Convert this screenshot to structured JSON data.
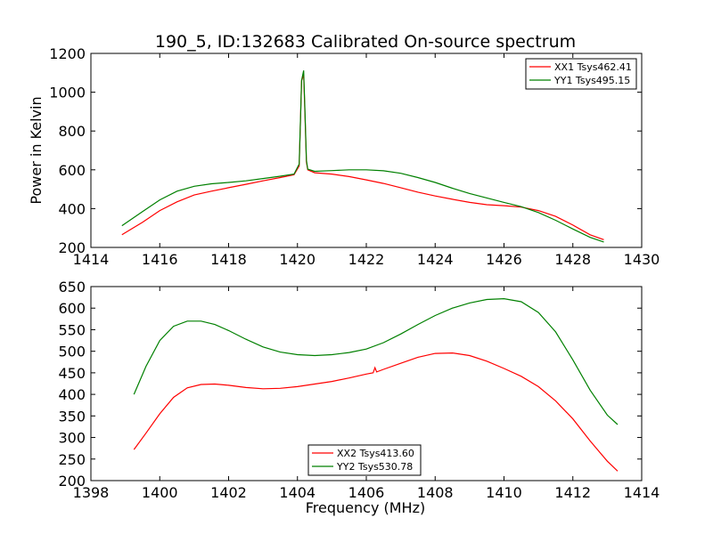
{
  "chart_data": [
    {
      "type": "line",
      "title": "190_5, ID:132683 Calibrated On-source spectrum",
      "xlabel": "",
      "ylabel": "Power in Kelvin",
      "xlim": [
        1414,
        1430
      ],
      "ylim": [
        200,
        1200
      ],
      "xticks": [
        1414,
        1416,
        1418,
        1420,
        1422,
        1424,
        1426,
        1428,
        1430
      ],
      "yticks": [
        200,
        400,
        600,
        800,
        1000,
        1200
      ],
      "legend_position": "top-right",
      "series": [
        {
          "name": "XX1 Tsys462.41",
          "color": "#ff0000",
          "x": [
            1414.9,
            1415.5,
            1416.0,
            1416.5,
            1417.0,
            1417.5,
            1418.0,
            1418.5,
            1419.0,
            1419.5,
            1419.9,
            1420.05,
            1420.12,
            1420.18,
            1420.22,
            1420.26,
            1420.3,
            1420.5,
            1421.0,
            1421.5,
            1422.0,
            1422.5,
            1423.0,
            1423.5,
            1424.0,
            1424.5,
            1425.0,
            1425.5,
            1426.0,
            1426.5,
            1427.0,
            1427.5,
            1428.0,
            1428.5,
            1428.9
          ],
          "values": [
            265,
            330,
            390,
            435,
            470,
            490,
            508,
            525,
            543,
            560,
            575,
            620,
            1060,
            1090,
            880,
            640,
            600,
            585,
            578,
            565,
            548,
            530,
            508,
            485,
            465,
            448,
            432,
            420,
            415,
            408,
            390,
            360,
            315,
            265,
            240
          ]
        },
        {
          "name": "YY1 Tsys495.15",
          "color": "#008000",
          "x": [
            1414.9,
            1415.5,
            1416.0,
            1416.5,
            1417.0,
            1417.5,
            1418.0,
            1418.5,
            1419.0,
            1419.5,
            1419.9,
            1420.05,
            1420.12,
            1420.18,
            1420.22,
            1420.26,
            1420.3,
            1420.5,
            1421.0,
            1421.5,
            1422.0,
            1422.5,
            1423.0,
            1423.5,
            1424.0,
            1424.5,
            1425.0,
            1425.5,
            1426.0,
            1426.5,
            1427.0,
            1427.5,
            1428.0,
            1428.5,
            1428.9
          ],
          "values": [
            312,
            385,
            445,
            490,
            515,
            528,
            535,
            543,
            555,
            567,
            578,
            630,
            1060,
            1112,
            900,
            650,
            603,
            592,
            596,
            600,
            600,
            595,
            582,
            560,
            535,
            505,
            478,
            455,
            432,
            410,
            380,
            340,
            295,
            252,
            228
          ]
        }
      ]
    },
    {
      "type": "line",
      "title": "",
      "xlabel": "Frequency (MHz)",
      "ylabel": "",
      "xlim": [
        1398,
        1414
      ],
      "ylim": [
        200,
        650
      ],
      "xticks": [
        1398,
        1400,
        1402,
        1404,
        1406,
        1408,
        1410,
        1412,
        1414
      ],
      "yticks": [
        200,
        250,
        300,
        350,
        400,
        450,
        500,
        550,
        600,
        650
      ],
      "legend_position": "bottom-center",
      "series": [
        {
          "name": "XX2 Tsys413.60",
          "color": "#ff0000",
          "x": [
            1399.25,
            1399.6,
            1400.0,
            1400.4,
            1400.8,
            1401.2,
            1401.6,
            1402.0,
            1402.5,
            1403.0,
            1403.5,
            1404.0,
            1404.5,
            1405.0,
            1405.5,
            1406.0,
            1406.2,
            1406.25,
            1406.3,
            1406.5,
            1407.0,
            1407.5,
            1408.0,
            1408.5,
            1409.0,
            1409.5,
            1410.0,
            1410.5,
            1411.0,
            1411.5,
            1412.0,
            1412.5,
            1413.0,
            1413.3
          ],
          "values": [
            272,
            310,
            355,
            393,
            415,
            423,
            424,
            421,
            416,
            413,
            414,
            418,
            424,
            430,
            438,
            447,
            450,
            462,
            452,
            458,
            472,
            486,
            495,
            496,
            490,
            477,
            460,
            442,
            418,
            385,
            343,
            292,
            245,
            222
          ]
        },
        {
          "name": "YY2 Tsys530.78",
          "color": "#008000",
          "x": [
            1399.25,
            1399.6,
            1400.0,
            1400.4,
            1400.8,
            1401.2,
            1401.6,
            1402.0,
            1402.5,
            1403.0,
            1403.5,
            1404.0,
            1404.5,
            1405.0,
            1405.5,
            1406.0,
            1406.5,
            1407.0,
            1407.5,
            1408.0,
            1408.5,
            1409.0,
            1409.5,
            1410.0,
            1410.5,
            1411.0,
            1411.5,
            1412.0,
            1412.5,
            1413.0,
            1413.3
          ],
          "values": [
            400,
            465,
            525,
            558,
            570,
            570,
            562,
            548,
            528,
            510,
            498,
            492,
            490,
            492,
            497,
            505,
            520,
            540,
            562,
            583,
            600,
            612,
            620,
            622,
            615,
            590,
            545,
            480,
            410,
            352,
            330
          ]
        }
      ]
    }
  ]
}
